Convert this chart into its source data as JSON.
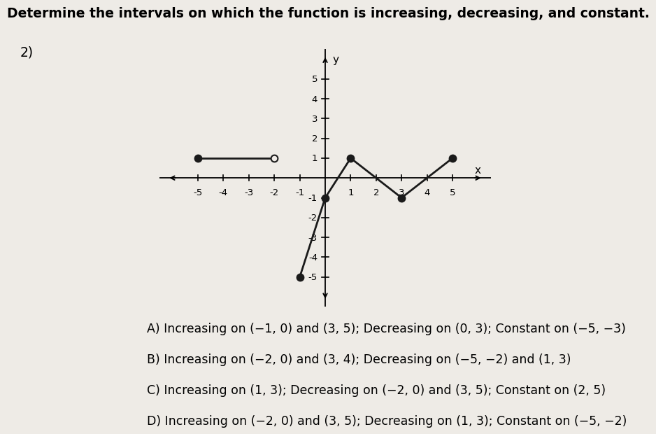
{
  "title": "Determine the intervals on which the function is increasing, decreasing, and constant.",
  "question_number": "2)",
  "segments": [
    {
      "x": [
        -5,
        -2
      ],
      "y": [
        1,
        1
      ],
      "start_filled": true,
      "end_filled": false
    },
    {
      "x": [
        -1,
        0
      ],
      "y": [
        -5,
        -1
      ],
      "start_filled": true,
      "end_filled": false
    },
    {
      "x": [
        0,
        1
      ],
      "y": [
        -1,
        1
      ],
      "start_filled": true,
      "end_filled": false
    },
    {
      "x": [
        1,
        3
      ],
      "y": [
        1,
        -1
      ],
      "start_filled": true,
      "end_filled": true
    },
    {
      "x": [
        3,
        5
      ],
      "y": [
        -1,
        1
      ],
      "start_filled": false,
      "end_filled": true
    }
  ],
  "xlim": [
    -6.5,
    6.5
  ],
  "ylim": [
    -6.5,
    6.5
  ],
  "xticks": [
    -5,
    -4,
    -3,
    -2,
    -1,
    1,
    2,
    3,
    4,
    5
  ],
  "yticks": [
    -5,
    -4,
    -3,
    -2,
    -1,
    1,
    2,
    3,
    4,
    5
  ],
  "xlabel": "x",
  "ylabel": "y",
  "line_color": "#1a1a1a",
  "dot_fill_color": "#1a1a1a",
  "dot_open_color": "#f0ece8",
  "dot_edge_color": "#1a1a1a",
  "dot_size": 7,
  "answers": [
    "A) Increasing on (−1, 0) and (3, 5); Decreasing on (0, 3); Constant on (−5, −3)",
    "B) Increasing on (−2, 0) and (3, 4); Decreasing on (−5, −2) and (1, 3)",
    "C) Increasing on (1, 3); Decreasing on (−2, 0) and (3, 5); Constant on (2, 5)",
    "D) Increasing on (−2, 0) and (3, 5); Decreasing on (1, 3); Constant on (−5, −2)"
  ],
  "background_color": "#eeebe6",
  "answer_fontsize": 12.5,
  "title_fontsize": 13.5
}
